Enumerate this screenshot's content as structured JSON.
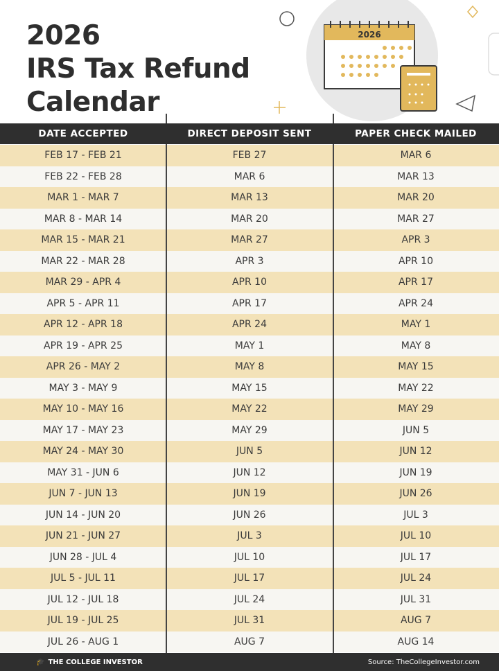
{
  "title": {
    "line1": "2026",
    "line2": "IRS Tax Refund",
    "line3": "Calendar"
  },
  "illustration": {
    "year": "2026",
    "icon": "calendar-calculator-icon"
  },
  "colors": {
    "accent": "#e2b85c",
    "header_bg": "#2f2f2f",
    "row_tan": "#f3e2b8",
    "row_light": "#f7f6f2"
  },
  "table": {
    "headers": [
      "DATE ACCEPTED",
      "DIRECT DEPOSIT SENT",
      "PAPER CHECK MAILED"
    ],
    "rows": [
      [
        "FEB 17 - FEB 21",
        "FEB 27",
        "MAR 6"
      ],
      [
        "FEB 22 - FEB 28",
        "MAR 6",
        "MAR 13"
      ],
      [
        "MAR 1 - MAR 7",
        "MAR 13",
        "MAR 20"
      ],
      [
        "MAR 8 - MAR 14",
        "MAR 20",
        "MAR 27"
      ],
      [
        "MAR 15 - MAR 21",
        "MAR 27",
        "APR 3"
      ],
      [
        "MAR 22 - MAR 28",
        "APR 3",
        "APR 10"
      ],
      [
        "MAR 29 - APR 4",
        "APR 10",
        "APR 17"
      ],
      [
        "APR 5 - APR 11",
        "APR 17",
        "APR 24"
      ],
      [
        "APR 12 - APR 18",
        "APR 24",
        "MAY 1"
      ],
      [
        "APR 19 - APR 25",
        "MAY 1",
        "MAY 8"
      ],
      [
        "APR 26 - MAY 2",
        "MAY 8",
        "MAY 15"
      ],
      [
        "MAY 3 - MAY 9",
        "MAY 15",
        "MAY 22"
      ],
      [
        "MAY 10 - MAY 16",
        "MAY 22",
        "MAY 29"
      ],
      [
        "MAY 17 - MAY 23",
        "MAY 29",
        "JUN 5"
      ],
      [
        "MAY 24 - MAY 30",
        "JUN 5",
        "JUN 12"
      ],
      [
        "MAY 31 - JUN 6",
        "JUN 12",
        "JUN 19"
      ],
      [
        "JUN 7 - JUN 13",
        "JUN 19",
        "JUN 26"
      ],
      [
        "JUN 14 - JUN 20",
        "JUN 26",
        "JUL 3"
      ],
      [
        "JUN 21 - JUN 27",
        "JUL 3",
        "JUL 10"
      ],
      [
        "JUN 28 - JUL 4",
        "JUL 10",
        "JUL 17"
      ],
      [
        "JUL 5 - JUL 11",
        "JUL 17",
        "JUL 24"
      ],
      [
        "JUL 12 - JUL 18",
        "JUL 24",
        "JUL 31"
      ],
      [
        "JUL 19 - JUL 25",
        "JUL 31",
        "AUG 7"
      ],
      [
        "JUL 26 - AUG 1",
        "AUG 7",
        "AUG 14"
      ]
    ]
  },
  "footer": {
    "brand": "THE COLLEGE INVESTOR",
    "source": "Source: TheCollegeInvestor.com"
  }
}
